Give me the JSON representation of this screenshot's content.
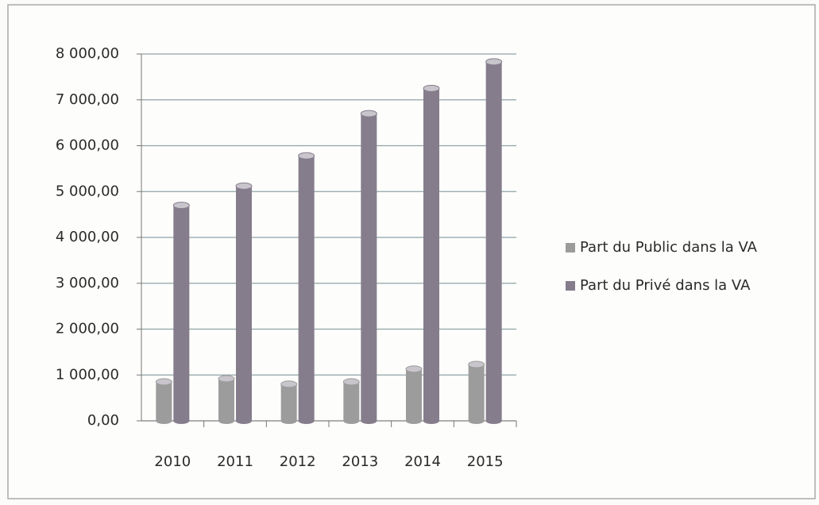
{
  "chart_data": {
    "type": "bar",
    "categories": [
      "2010",
      "2011",
      "2012",
      "2013",
      "2014",
      "2015"
    ],
    "series": [
      {
        "name": "Part du Public dans la VA",
        "color": "#9c9c9c",
        "values": [
          850,
          920,
          800,
          850,
          1130,
          1230
        ]
      },
      {
        "name": "Part du Privé dans la VA",
        "color": "#857d8c",
        "values": [
          4700,
          5120,
          5780,
          6700,
          7250,
          7830
        ]
      }
    ],
    "ylim": [
      0,
      8000
    ],
    "yticks": [
      {
        "value": 0,
        "label": "0,00"
      },
      {
        "value": 1000,
        "label": "1 000,00"
      },
      {
        "value": 2000,
        "label": "2 000,00"
      },
      {
        "value": 3000,
        "label": "3 000,00"
      },
      {
        "value": 4000,
        "label": "4 000,00"
      },
      {
        "value": 5000,
        "label": "5 000,00"
      },
      {
        "value": 6000,
        "label": "6 000,00"
      },
      {
        "value": 7000,
        "label": "7 000,00"
      },
      {
        "value": 8000,
        "label": "8 000,00"
      }
    ],
    "grid": true,
    "legend": "right"
  }
}
